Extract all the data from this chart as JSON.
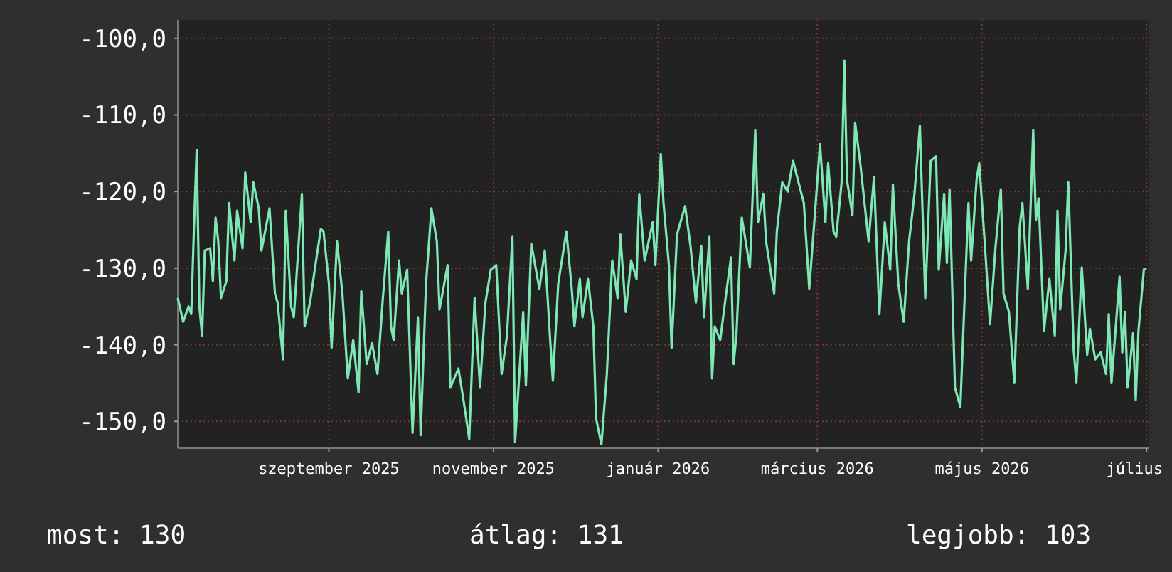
{
  "chart_data": {
    "type": "line",
    "x": [
      "2025-07-07",
      "2025-07-09",
      "2025-07-11",
      "2025-07-12",
      "2025-07-13",
      "2025-07-14",
      "2025-07-15",
      "2025-07-16",
      "2025-07-17",
      "2025-07-19",
      "2025-07-20",
      "2025-07-21",
      "2025-07-22",
      "2025-07-23",
      "2025-07-25",
      "2025-07-26",
      "2025-07-28",
      "2025-07-29",
      "2025-07-31",
      "2025-08-01",
      "2025-08-03",
      "2025-08-04",
      "2025-08-06",
      "2025-08-07",
      "2025-08-10",
      "2025-08-12",
      "2025-08-13",
      "2025-08-15",
      "2025-08-16",
      "2025-08-18",
      "2025-08-19",
      "2025-08-22",
      "2025-08-23",
      "2025-08-25",
      "2025-08-27",
      "2025-08-29",
      "2025-08-30",
      "2025-09-01",
      "2025-09-02",
      "2025-09-04",
      "2025-09-06",
      "2025-09-08",
      "2025-09-10",
      "2025-09-12",
      "2025-09-13",
      "2025-09-15",
      "2025-09-17",
      "2025-09-19",
      "2025-09-21",
      "2025-09-23",
      "2025-09-24",
      "2025-09-25",
      "2025-09-27",
      "2025-09-28",
      "2025-09-30",
      "2025-10-02",
      "2025-10-04",
      "2025-10-05",
      "2025-10-07",
      "2025-10-09",
      "2025-10-11",
      "2025-10-12",
      "2025-10-15",
      "2025-10-16",
      "2025-10-19",
      "2025-10-21",
      "2025-10-23",
      "2025-10-25",
      "2025-10-27",
      "2025-10-29",
      "2025-10-31",
      "2025-11-02",
      "2025-11-04",
      "2025-11-06",
      "2025-11-08",
      "2025-11-09",
      "2025-11-12",
      "2025-11-13",
      "2025-11-15",
      "2025-11-18",
      "2025-11-20",
      "2025-11-22",
      "2025-11-23",
      "2025-11-25",
      "2025-11-28",
      "2025-11-30",
      "2025-12-01",
      "2025-12-03",
      "2025-12-04",
      "2025-12-06",
      "2025-12-08",
      "2025-12-09",
      "2025-12-11",
      "2025-12-13",
      "2025-12-15",
      "2025-12-17",
      "2025-12-18",
      "2025-12-20",
      "2025-12-22",
      "2025-12-24",
      "2025-12-25",
      "2025-12-27",
      "2025-12-30",
      "2025-12-31",
      "2026-01-02",
      "2026-01-03",
      "2026-01-05",
      "2026-01-06",
      "2026-01-08",
      "2026-01-11",
      "2026-01-13",
      "2026-01-15",
      "2026-01-17",
      "2026-01-18",
      "2026-01-20",
      "2026-01-21",
      "2026-01-22",
      "2026-01-24",
      "2026-01-26",
      "2026-01-28",
      "2026-01-29",
      "2026-01-30",
      "2026-02-01",
      "2026-02-04",
      "2026-02-06",
      "2026-02-07",
      "2026-02-09",
      "2026-02-10",
      "2026-02-13",
      "2026-02-14",
      "2026-02-16",
      "2026-02-18",
      "2026-02-20",
      "2026-02-24",
      "2026-02-26",
      "2026-02-28",
      "2026-03-02",
      "2026-03-04",
      "2026-03-05",
      "2026-03-07",
      "2026-03-08",
      "2026-03-10",
      "2026-03-11",
      "2026-03-12",
      "2026-03-14",
      "2026-03-15",
      "2026-03-17",
      "2026-03-20",
      "2026-03-22",
      "2026-03-24",
      "2026-03-26",
      "2026-03-28",
      "2026-03-29",
      "2026-03-31",
      "2026-04-02",
      "2026-04-04",
      "2026-04-06",
      "2026-04-08",
      "2026-04-10",
      "2026-04-12",
      "2026-04-14",
      "2026-04-15",
      "2026-04-17",
      "2026-04-18",
      "2026-04-19",
      "2026-04-21",
      "2026-04-23",
      "2026-04-25",
      "2026-04-26",
      "2026-04-27",
      "2026-04-29",
      "2026-04-30",
      "2026-05-02",
      "2026-05-04",
      "2026-05-06",
      "2026-05-08",
      "2026-05-09",
      "2026-05-11",
      "2026-05-13",
      "2026-05-15",
      "2026-05-16",
      "2026-05-18",
      "2026-05-20",
      "2026-05-21",
      "2026-05-22",
      "2026-05-24",
      "2026-05-26",
      "2026-05-28",
      "2026-05-29",
      "2026-05-30",
      "2026-06-01",
      "2026-06-02",
      "2026-06-04",
      "2026-06-05",
      "2026-06-07",
      "2026-06-09",
      "2026-06-10",
      "2026-06-12",
      "2026-06-14",
      "2026-06-16",
      "2026-06-17",
      "2026-06-18",
      "2026-06-19",
      "2026-06-21",
      "2026-06-22",
      "2026-06-23",
      "2026-06-24",
      "2026-06-26",
      "2026-06-27",
      "2026-06-28",
      "2026-06-30",
      "2026-07-01"
    ],
    "series": [
      {
        "color": "#7de8b4",
        "values": [
          -133.9,
          -137,
          -135,
          -136,
          -124.6,
          -114.6,
          -135,
          -138.8,
          -127.7,
          -127.4,
          -131.7,
          -123.4,
          -126.5,
          -133.9,
          -131.7,
          -121.5,
          -129,
          -122.5,
          -127.4,
          -117.5,
          -124,
          -118.8,
          -122.2,
          -127.7,
          -122.2,
          -133.3,
          -134.5,
          -141.9,
          -122.5,
          -135,
          -136.4,
          -120.3,
          -137.6,
          -134.5,
          -129.6,
          -124.9,
          -125.2,
          -132,
          -140.4,
          -126.5,
          -133.3,
          -144.4,
          -139.4,
          -146.2,
          -133,
          -142.5,
          -139.8,
          -143.8,
          -133.9,
          -125.2,
          -137.6,
          -139.4,
          -129,
          -133.3,
          -130.2,
          -151.5,
          -136.4,
          -151.8,
          -132,
          -122.2,
          -126.5,
          -135.4,
          -129.6,
          -145.6,
          -143.1,
          -147.5,
          -152.3,
          -133.9,
          -145.6,
          -134.5,
          -130.2,
          -129.6,
          -143.8,
          -138.8,
          -125.9,
          -152.7,
          -135.7,
          -145.3,
          -126.8,
          -132.7,
          -127.7,
          -139.4,
          -144.7,
          -132,
          -125.2,
          -132.7,
          -137.6,
          -131.4,
          -136.4,
          -131.4,
          -137.6,
          -149.6,
          -153,
          -143.8,
          -129,
          -133.9,
          -125.6,
          -135.7,
          -129,
          -131.4,
          -120.3,
          -129,
          -124,
          -129.6,
          -115.1,
          -121.5,
          -129.6,
          -140.4,
          -125.6,
          -121.9,
          -127.1,
          -134.5,
          -127.1,
          -136.4,
          -125.9,
          -144.4,
          -137.6,
          -139.4,
          -133.9,
          -128.6,
          -142.5,
          -138.8,
          -123.4,
          -129.9,
          -112,
          -124,
          -120.3,
          -126.5,
          -133.3,
          -125.2,
          -118.8,
          -120,
          -116,
          -121.5,
          -132.7,
          -123.4,
          -113.8,
          -124,
          -116.3,
          -125.2,
          -125.9,
          -118.8,
          -102.9,
          -118.5,
          -123.1,
          -111,
          -116.6,
          -126.5,
          -118.1,
          -136,
          -124,
          -130.2,
          -119.1,
          -132,
          -137,
          -126.5,
          -120.3,
          -111.4,
          -133.9,
          -116,
          -115.4,
          -130.2,
          -120.3,
          -129.3,
          -119.7,
          -145.6,
          -148.1,
          -130.2,
          -121.5,
          -129,
          -118.5,
          -116.3,
          -126.5,
          -137.3,
          -127.4,
          -119.7,
          -133.3,
          -135.7,
          -145,
          -124.6,
          -121.5,
          -132.7,
          -112,
          -123.7,
          -120.9,
          -138.2,
          -131.4,
          -138.8,
          -122.5,
          -135.4,
          -127.7,
          -118.8,
          -140.7,
          -145,
          -129.9,
          -141.3,
          -137.9,
          -141.9,
          -141,
          -143.8,
          -136,
          -145,
          -140.4,
          -131.1,
          -141,
          -135.7,
          -145.6,
          -138.5,
          -147.2,
          -138.2,
          -130.2,
          -130.1
        ]
      }
    ],
    "xlim": [
      "2025-07-07",
      "2026-07-02"
    ],
    "xticks": [
      {
        "value": "2025-09-01",
        "label": "szeptember 2025"
      },
      {
        "value": "2025-11-01",
        "label": "november 2025"
      },
      {
        "value": "2026-01-01",
        "label": "január 2026"
      },
      {
        "value": "2026-03-01",
        "label": "március 2026"
      },
      {
        "value": "2026-05-01",
        "label": "május 2026"
      },
      {
        "value": "2026-07-01",
        "label": "július"
      }
    ],
    "ylim": [
      -153.5,
      -97.6
    ],
    "yticks": [
      {
        "value": -100,
        "label": "-100,0"
      },
      {
        "value": -110,
        "label": "-110,0"
      },
      {
        "value": -120,
        "label": "-120,0"
      },
      {
        "value": -130,
        "label": "-130,0"
      },
      {
        "value": -140,
        "label": "-140,0"
      },
      {
        "value": -150,
        "label": "-150,0"
      }
    ],
    "grid": true,
    "annotations": [
      "most: 130",
      "átlag: 131",
      "legjobb: 103"
    ]
  }
}
